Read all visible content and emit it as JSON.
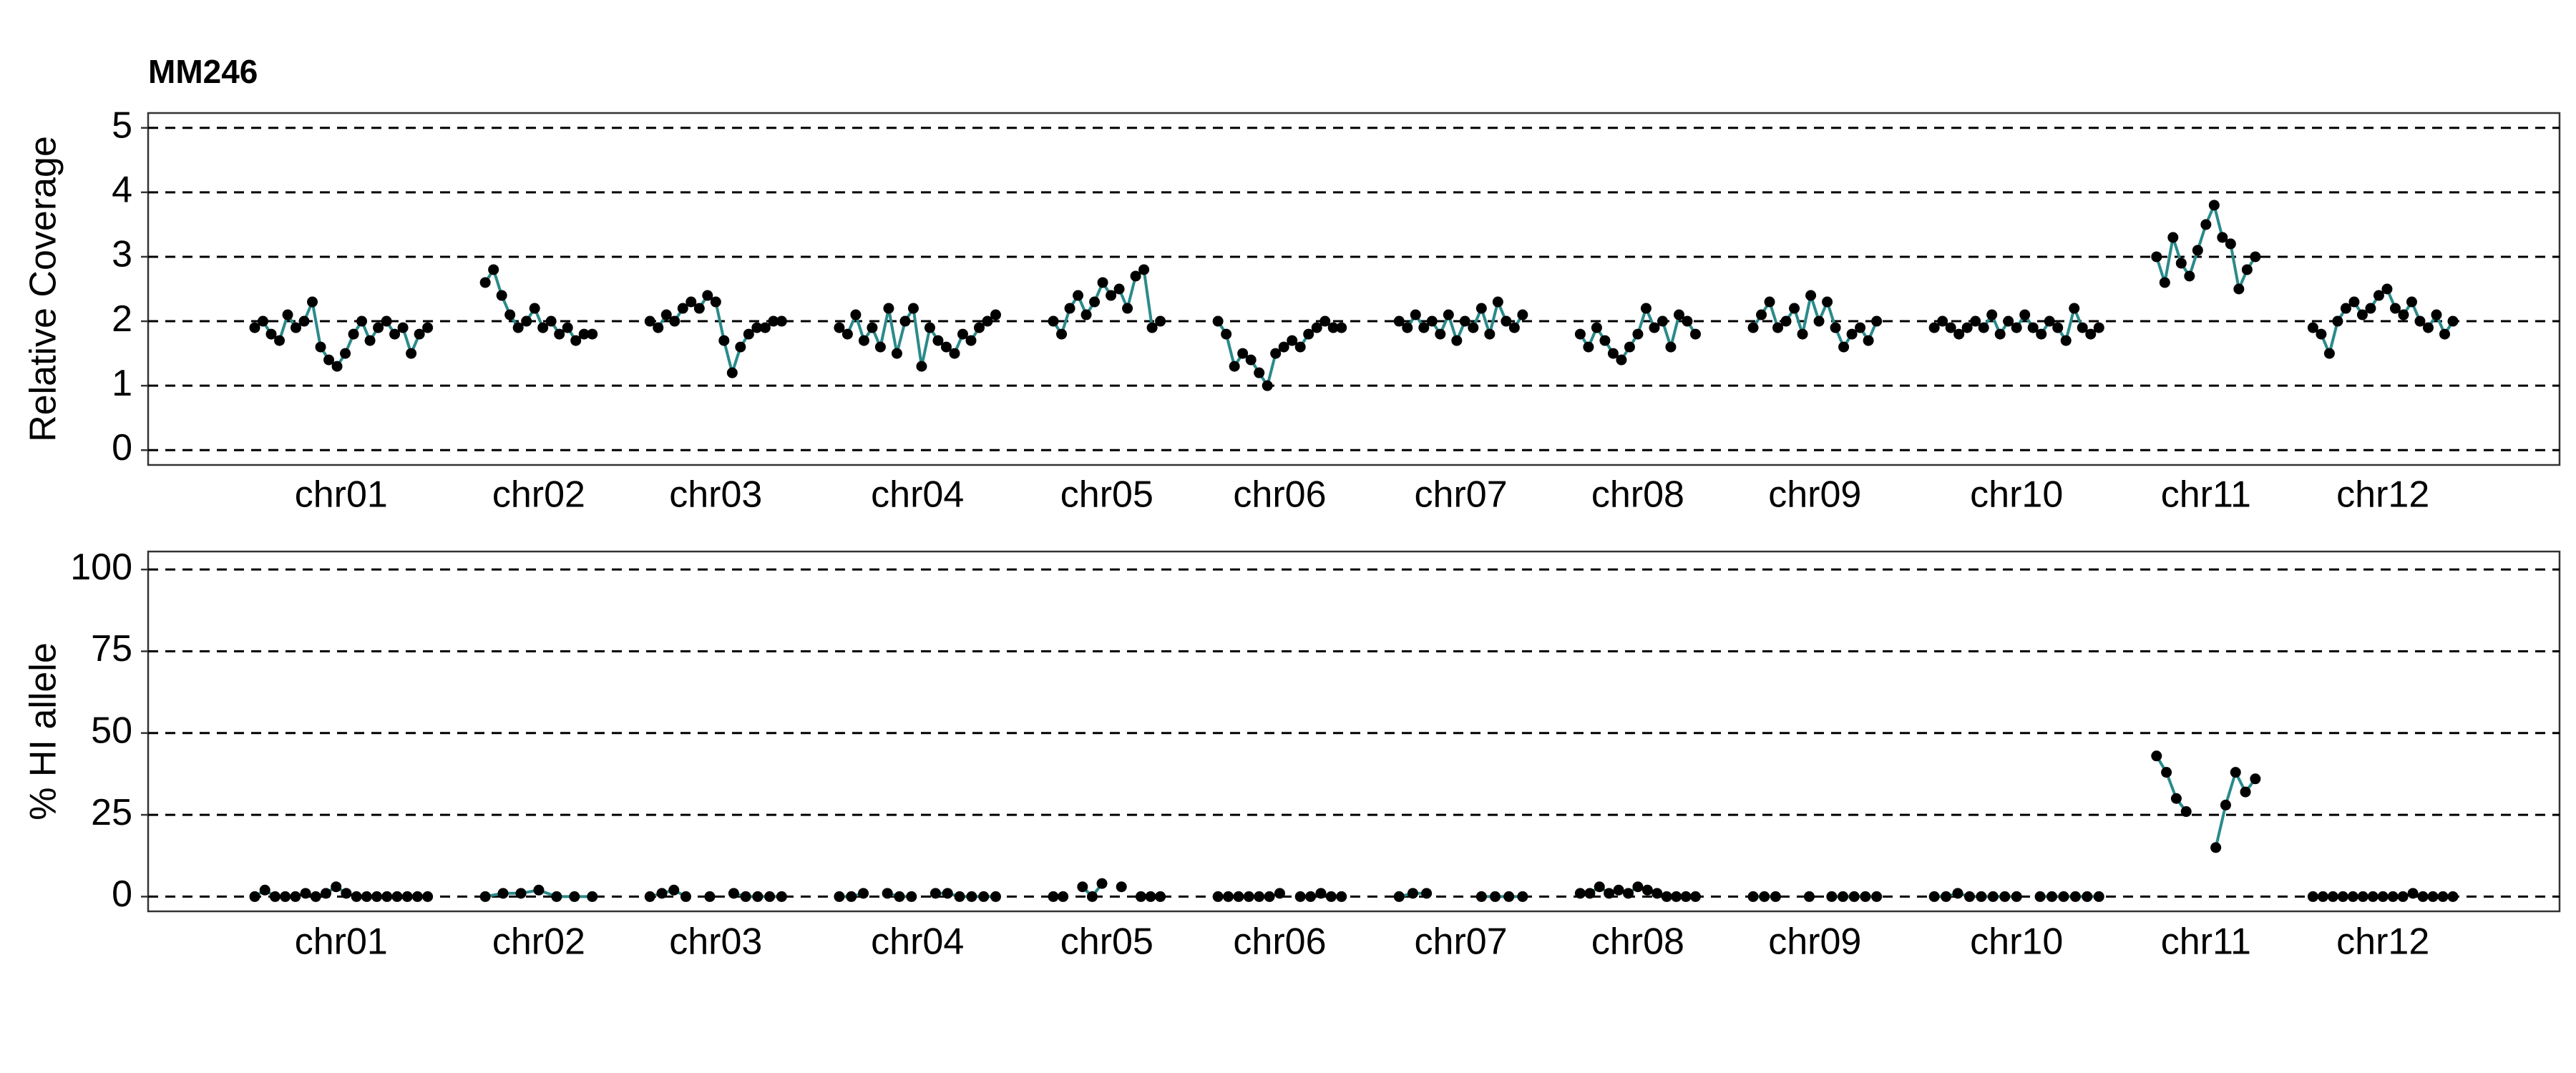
{
  "chart_data": [
    {
      "type": "line",
      "title": "MM246",
      "y_label": "Relative Coverage",
      "categories": [
        "chr01",
        "chr02",
        "chr03",
        "chr04",
        "chr05",
        "chr06",
        "chr07",
        "chr08",
        "chr09",
        "chr10",
        "chr11",
        "chr12"
      ],
      "values": [
        [
          1.9,
          2.0,
          1.8,
          1.7,
          2.1,
          1.9,
          2.0,
          2.3,
          1.6,
          1.4,
          1.3,
          1.5,
          1.8,
          2.0,
          1.7,
          1.9,
          2.0,
          1.8,
          1.9,
          1.5,
          1.8,
          1.9
        ],
        [
          2.6,
          2.8,
          2.4,
          2.1,
          1.9,
          2.0,
          2.2,
          1.9,
          2.0,
          1.8,
          1.9,
          1.7,
          1.8,
          1.8
        ],
        [
          2.0,
          1.9,
          2.1,
          2.0,
          2.2,
          2.3,
          2.2,
          2.4,
          2.3,
          1.7,
          1.2,
          1.6,
          1.8,
          1.9,
          1.9,
          2.0,
          2.0
        ],
        [
          1.9,
          1.8,
          2.1,
          1.7,
          1.9,
          1.6,
          2.2,
          1.5,
          2.0,
          2.2,
          1.3,
          1.9,
          1.7,
          1.6,
          1.5,
          1.8,
          1.7,
          1.9,
          2.0,
          2.1
        ],
        [
          2.0,
          1.8,
          2.2,
          2.4,
          2.1,
          2.3,
          2.6,
          2.4,
          2.5,
          2.2,
          2.7,
          2.8,
          1.9,
          2.0
        ],
        [
          2.0,
          1.8,
          1.3,
          1.5,
          1.4,
          1.2,
          1.0,
          1.5,
          1.6,
          1.7,
          1.6,
          1.8,
          1.9,
          2.0,
          1.9,
          1.9
        ],
        [
          2.0,
          1.9,
          2.1,
          1.9,
          2.0,
          1.8,
          2.1,
          1.7,
          2.0,
          1.9,
          2.2,
          1.8,
          2.3,
          2.0,
          1.9,
          2.1
        ],
        [
          1.8,
          1.6,
          1.9,
          1.7,
          1.5,
          1.4,
          1.6,
          1.8,
          2.2,
          1.9,
          2.0,
          1.6,
          2.1,
          2.0,
          1.8
        ],
        [
          1.9,
          2.1,
          2.3,
          1.9,
          2.0,
          2.2,
          1.8,
          2.4,
          2.0,
          2.3,
          1.9,
          1.6,
          1.8,
          1.9,
          1.7,
          2.0
        ],
        [
          1.9,
          2.0,
          1.9,
          1.8,
          1.9,
          2.0,
          1.9,
          2.1,
          1.8,
          2.0,
          1.9,
          2.1,
          1.9,
          1.8,
          2.0,
          1.9,
          1.7,
          2.2,
          1.9,
          1.8,
          1.9
        ],
        [
          3.0,
          2.6,
          3.3,
          2.9,
          2.7,
          3.1,
          3.5,
          3.8,
          3.3,
          3.2,
          2.5,
          2.8,
          3.0
        ],
        [
          1.9,
          1.8,
          1.5,
          2.0,
          2.2,
          2.3,
          2.1,
          2.2,
          2.4,
          2.5,
          2.2,
          2.1,
          2.3,
          2.0,
          1.9,
          2.1,
          1.8,
          2.0
        ]
      ],
      "ylim": [
        -0.23,
        5.23
      ],
      "yticks": [
        0,
        1,
        2,
        3,
        4,
        5
      ],
      "grid": true,
      "line_color": "#2a8a8a",
      "marker_color": "#000000"
    },
    {
      "type": "line",
      "y_label": "% HI allele",
      "categories": [
        "chr01",
        "chr02",
        "chr03",
        "chr04",
        "chr05",
        "chr06",
        "chr07",
        "chr08",
        "chr09",
        "chr10",
        "chr11",
        "chr12"
      ],
      "values": [
        [
          0,
          2,
          0,
          0,
          0,
          1,
          0,
          1,
          3,
          1,
          0,
          0,
          0,
          0,
          0,
          0,
          0,
          0
        ],
        [
          0,
          1,
          1,
          2,
          0,
          0,
          0
        ],
        [
          0,
          1,
          2,
          0,
          null,
          0,
          null,
          1,
          0,
          0,
          0,
          0
        ],
        [
          0,
          0,
          1,
          null,
          1,
          0,
          0,
          null,
          1,
          1,
          0,
          0,
          0,
          0
        ],
        [
          0,
          0,
          null,
          3,
          0,
          4,
          null,
          3,
          null,
          0,
          0,
          0
        ],
        [
          0,
          0,
          0,
          0,
          0,
          0,
          1,
          null,
          0,
          0,
          1,
          0,
          0
        ],
        [
          0,
          1,
          1,
          null,
          null,
          null,
          0,
          0,
          0,
          0
        ],
        [
          1,
          1,
          3,
          1,
          2,
          1,
          3,
          2,
          1,
          0,
          0,
          0,
          0
        ],
        [
          0,
          0,
          0,
          null,
          null,
          0,
          null,
          0,
          0,
          0,
          0,
          0
        ],
        [
          0,
          0,
          1,
          0,
          0,
          0,
          0,
          0,
          null,
          0,
          0,
          0,
          0,
          0,
          0
        ],
        [
          43,
          38,
          30,
          26,
          null,
          null,
          15,
          28,
          38,
          32,
          36
        ],
        [
          0,
          0,
          0,
          0,
          0,
          0,
          0,
          0,
          0,
          0,
          1,
          0,
          0,
          0,
          0
        ]
      ],
      "ylim": [
        -4.5,
        105.5
      ],
      "yticks": [
        0,
        25,
        50,
        75,
        100
      ],
      "grid": true,
      "line_color": "#2a8a8a",
      "marker_color": "#000000"
    }
  ]
}
